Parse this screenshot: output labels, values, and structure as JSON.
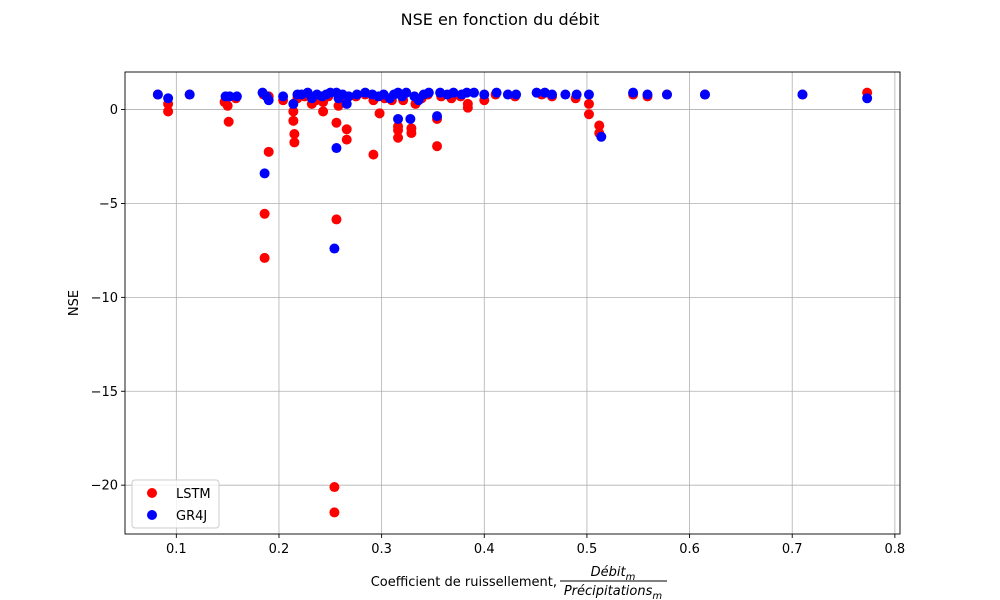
{
  "chart_data": {
    "type": "scatter",
    "title": "NSE en fonction du débit",
    "xlabel": "Coefficient de ruissellement,",
    "xlabel_frac_numerator": "Débit",
    "xlabel_frac_numerator_sub": "m",
    "xlabel_frac_denominator": "Précipitations",
    "xlabel_frac_denominator_sub": "m",
    "ylabel": "NSE",
    "xlim": [
      0.05,
      0.805
    ],
    "ylim": [
      -22.6,
      2.0
    ],
    "xticks": [
      0.1,
      0.2,
      0.3,
      0.4,
      0.5,
      0.6,
      0.7,
      0.8
    ],
    "xtick_labels": [
      "0.1",
      "0.2",
      "0.3",
      "0.4",
      "0.5",
      "0.6",
      "0.7",
      "0.8"
    ],
    "yticks": [
      0,
      -5,
      -10,
      -15,
      -20
    ],
    "ytick_labels": [
      "0",
      "−5",
      "−10",
      "−15",
      "−20"
    ],
    "grid": true,
    "legend_position": "lower-left",
    "series": [
      {
        "name": "LSTM",
        "color": "#ff0000",
        "points": [
          [
            0.082,
            0.8
          ],
          [
            0.092,
            0.3
          ],
          [
            0.092,
            -0.1
          ],
          [
            0.113,
            0.8
          ],
          [
            0.147,
            0.4
          ],
          [
            0.15,
            0.2
          ],
          [
            0.151,
            -0.65
          ],
          [
            0.158,
            0.6
          ],
          [
            0.185,
            0.8
          ],
          [
            0.186,
            -5.55
          ],
          [
            0.186,
            -7.9
          ],
          [
            0.19,
            -2.25
          ],
          [
            0.19,
            0.7
          ],
          [
            0.204,
            0.5
          ],
          [
            0.214,
            -0.1
          ],
          [
            0.214,
            -0.6
          ],
          [
            0.215,
            -1.3
          ],
          [
            0.215,
            -1.75
          ],
          [
            0.218,
            0.6
          ],
          [
            0.225,
            0.7
          ],
          [
            0.232,
            0.3
          ],
          [
            0.236,
            0.5
          ],
          [
            0.243,
            -0.1
          ],
          [
            0.243,
            0.4
          ],
          [
            0.248,
            0.7
          ],
          [
            0.254,
            -20.1
          ],
          [
            0.254,
            -21.45
          ],
          [
            0.256,
            -5.85
          ],
          [
            0.256,
            -0.7
          ],
          [
            0.258,
            0.2
          ],
          [
            0.262,
            0.6
          ],
          [
            0.266,
            -1.05
          ],
          [
            0.266,
            -1.6
          ],
          [
            0.275,
            0.7
          ],
          [
            0.284,
            0.8
          ],
          [
            0.292,
            -2.4
          ],
          [
            0.292,
            0.5
          ],
          [
            0.298,
            -0.2
          ],
          [
            0.303,
            0.6
          ],
          [
            0.31,
            0.5
          ],
          [
            0.316,
            -0.9
          ],
          [
            0.316,
            -1.1
          ],
          [
            0.316,
            -1.5
          ],
          [
            0.321,
            0.5
          ],
          [
            0.329,
            -1.0
          ],
          [
            0.329,
            -1.25
          ],
          [
            0.333,
            0.3
          ],
          [
            0.339,
            0.6
          ],
          [
            0.345,
            0.8
          ],
          [
            0.354,
            -0.5
          ],
          [
            0.354,
            -1.95
          ],
          [
            0.358,
            0.7
          ],
          [
            0.368,
            0.6
          ],
          [
            0.377,
            0.7
          ],
          [
            0.384,
            0.3
          ],
          [
            0.384,
            0.1
          ],
          [
            0.4,
            0.5
          ],
          [
            0.411,
            0.8
          ],
          [
            0.43,
            0.7
          ],
          [
            0.456,
            0.8
          ],
          [
            0.466,
            0.7
          ],
          [
            0.489,
            0.6
          ],
          [
            0.502,
            0.3
          ],
          [
            0.502,
            -0.25
          ],
          [
            0.512,
            -0.85
          ],
          [
            0.512,
            -1.25
          ],
          [
            0.545,
            0.8
          ],
          [
            0.559,
            0.7
          ],
          [
            0.578,
            0.8
          ],
          [
            0.615,
            0.8
          ],
          [
            0.71,
            0.8
          ],
          [
            0.773,
            0.9
          ]
        ]
      },
      {
        "name": "GR4J",
        "color": "#0000ff",
        "points": [
          [
            0.082,
            0.8
          ],
          [
            0.092,
            0.6
          ],
          [
            0.113,
            0.8
          ],
          [
            0.148,
            0.7
          ],
          [
            0.152,
            0.7
          ],
          [
            0.159,
            0.7
          ],
          [
            0.184,
            0.9
          ],
          [
            0.186,
            -3.4
          ],
          [
            0.188,
            0.7
          ],
          [
            0.19,
            0.5
          ],
          [
            0.204,
            0.7
          ],
          [
            0.214,
            0.3
          ],
          [
            0.218,
            0.8
          ],
          [
            0.222,
            0.8
          ],
          [
            0.228,
            0.9
          ],
          [
            0.232,
            0.6
          ],
          [
            0.237,
            0.8
          ],
          [
            0.242,
            0.7
          ],
          [
            0.246,
            0.8
          ],
          [
            0.25,
            0.9
          ],
          [
            0.254,
            -7.4
          ],
          [
            0.256,
            -2.05
          ],
          [
            0.256,
            0.9
          ],
          [
            0.258,
            0.6
          ],
          [
            0.262,
            0.8
          ],
          [
            0.266,
            0.3
          ],
          [
            0.268,
            0.7
          ],
          [
            0.276,
            0.8
          ],
          [
            0.284,
            0.9
          ],
          [
            0.291,
            0.8
          ],
          [
            0.297,
            0.7
          ],
          [
            0.302,
            0.8
          ],
          [
            0.308,
            0.6
          ],
          [
            0.312,
            0.8
          ],
          [
            0.316,
            -0.5
          ],
          [
            0.316,
            0.9
          ],
          [
            0.32,
            0.7
          ],
          [
            0.324,
            0.9
          ],
          [
            0.328,
            -0.5
          ],
          [
            0.332,
            0.7
          ],
          [
            0.336,
            0.5
          ],
          [
            0.341,
            0.8
          ],
          [
            0.346,
            0.9
          ],
          [
            0.354,
            -0.35
          ],
          [
            0.357,
            0.9
          ],
          [
            0.364,
            0.8
          ],
          [
            0.37,
            0.9
          ],
          [
            0.378,
            0.8
          ],
          [
            0.383,
            0.9
          ],
          [
            0.39,
            0.9
          ],
          [
            0.4,
            0.8
          ],
          [
            0.412,
            0.9
          ],
          [
            0.423,
            0.8
          ],
          [
            0.431,
            0.8
          ],
          [
            0.451,
            0.9
          ],
          [
            0.459,
            0.9
          ],
          [
            0.466,
            0.8
          ],
          [
            0.479,
            0.8
          ],
          [
            0.49,
            0.8
          ],
          [
            0.502,
            0.8
          ],
          [
            0.514,
            -1.45
          ],
          [
            0.545,
            0.9
          ],
          [
            0.559,
            0.8
          ],
          [
            0.578,
            0.8
          ],
          [
            0.615,
            0.8
          ],
          [
            0.71,
            0.8
          ],
          [
            0.773,
            0.6
          ]
        ]
      }
    ]
  }
}
